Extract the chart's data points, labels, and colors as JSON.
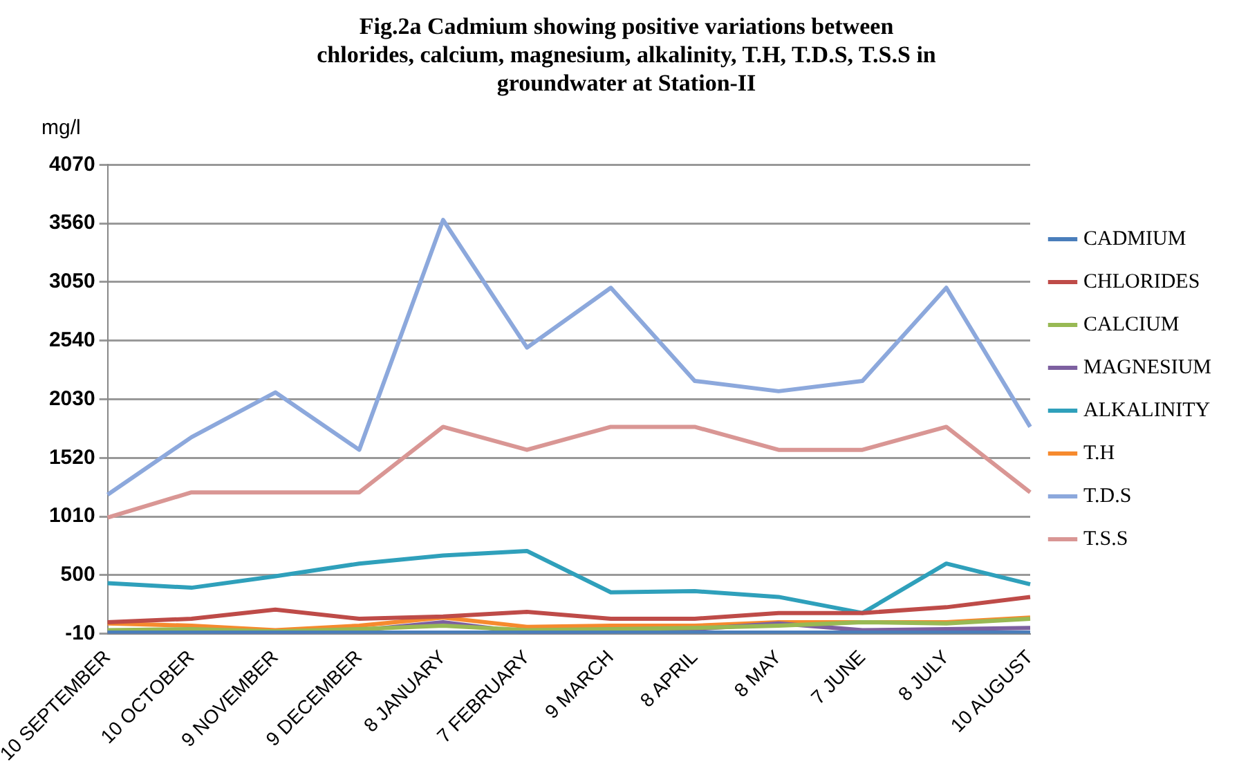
{
  "chart_data": {
    "type": "line",
    "title": [
      "Fig.2a Cadmium showing positive variations between",
      "chlorides, calcium, magnesium, alkalinity, T.H, T.D.S, T.S.S in",
      "groundwater at Station-II"
    ],
    "ylabel": "mg/l",
    "categories": [
      "10 SEPTEMBER",
      "10 OCTOBER",
      "9 NOVEMBER",
      "9 DECEMBER",
      "8 JANUARY",
      "7 FEBRUARY",
      "9 MARCH",
      "8 APRIL",
      "8 MAY",
      "7 JUNE",
      "8 JULY",
      "10 AUGUST"
    ],
    "series": [
      {
        "name": "CADMIUM",
        "color": "#4a7ebb",
        "values": [
          0,
          0,
          0,
          0,
          0,
          0,
          0,
          0,
          0,
          0,
          0,
          0
        ]
      },
      {
        "name": "CHLORIDES",
        "color": "#be4b48",
        "values": [
          90,
          120,
          200,
          120,
          140,
          180,
          120,
          120,
          170,
          170,
          220,
          310
        ]
      },
      {
        "name": "CALCIUM",
        "color": "#98b954",
        "values": [
          20,
          30,
          10,
          30,
          60,
          20,
          30,
          40,
          60,
          90,
          80,
          120
        ]
      },
      {
        "name": "MAGNESIUM",
        "color": "#7d60a0",
        "values": [
          10,
          10,
          0,
          20,
          90,
          0,
          10,
          30,
          80,
          20,
          30,
          40
        ]
      },
      {
        "name": "ALKALINITY",
        "color": "#2fa0bb",
        "values": [
          430,
          390,
          490,
          600,
          670,
          710,
          350,
          360,
          310,
          170,
          600,
          420
        ]
      },
      {
        "name": "T.H",
        "color": "#f68a2e",
        "values": [
          80,
          60,
          20,
          60,
          130,
          50,
          60,
          60,
          90,
          90,
          90,
          130
        ]
      },
      {
        "name": "T.D.S",
        "color": "#8ca8dc",
        "values": [
          1200,
          1700,
          2090,
          1590,
          3590,
          2480,
          3000,
          2190,
          2100,
          2190,
          3000,
          1790
        ]
      },
      {
        "name": "T.S.S",
        "color": "#d99694",
        "values": [
          1000,
          1220,
          1220,
          1220,
          1790,
          1590,
          1790,
          1790,
          1590,
          1590,
          1790,
          1220
        ]
      }
    ],
    "ylim": [
      -10,
      4070
    ],
    "yticks": [
      -10,
      500,
      1010,
      1520,
      2030,
      2540,
      3050,
      3560,
      4070
    ],
    "grid": "y",
    "legend": "right",
    "marker": "none",
    "line_style": "solid"
  }
}
